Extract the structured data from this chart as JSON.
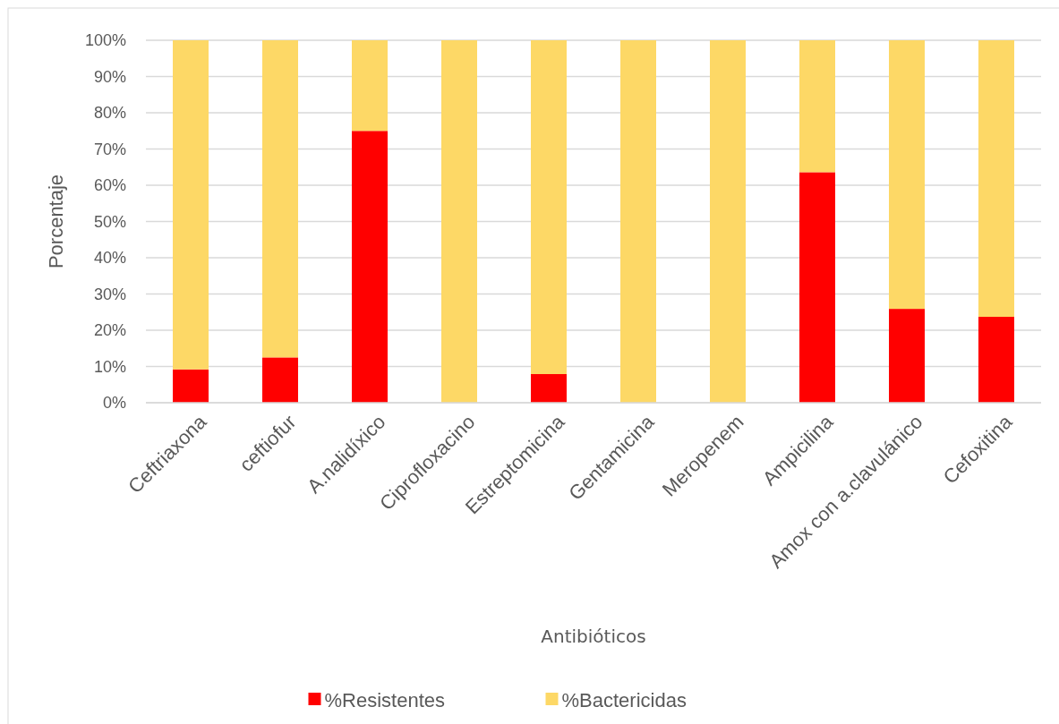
{
  "chart_data": {
    "type": "bar",
    "stacked": true,
    "xlabel": "Antibióticos",
    "ylabel": "Porcentaje",
    "categories": [
      "Ceftriaxona",
      "ceftiofur",
      "A.nalidíxico",
      "Ciprofloxacino",
      "Estreptomicina",
      "Gentamicina",
      "Meropenem",
      "Ampicilina",
      "Amox con a.clavulánico",
      "Cefoxitina"
    ],
    "series": [
      {
        "name": "%Resistentes",
        "color": "#ff0000",
        "values": [
          9.2,
          12.5,
          75,
          0,
          7.9,
          0,
          0,
          63.6,
          25.9,
          23.7
        ]
      },
      {
        "name": "%Bactericidas",
        "color": "#fdd866",
        "values": [
          90.8,
          87.5,
          25,
          100,
          92.1,
          100,
          100,
          36.4,
          74.1,
          76.3
        ]
      }
    ],
    "ylim": [
      0,
      100
    ],
    "yticks": [
      {
        "value": 0,
        "label": "0%"
      },
      {
        "value": 10,
        "label": "10%"
      },
      {
        "value": 20,
        "label": "20%"
      },
      {
        "value": 30,
        "label": "30%"
      },
      {
        "value": 40,
        "label": "40%"
      },
      {
        "value": 50,
        "label": "50%"
      },
      {
        "value": 60,
        "label": "60%"
      },
      {
        "value": 70,
        "label": "70%"
      },
      {
        "value": 80,
        "label": "80%"
      },
      {
        "value": 90,
        "label": "90%"
      },
      {
        "value": 100,
        "label": "100%"
      }
    ],
    "grid": "y",
    "legend": "bottom"
  }
}
